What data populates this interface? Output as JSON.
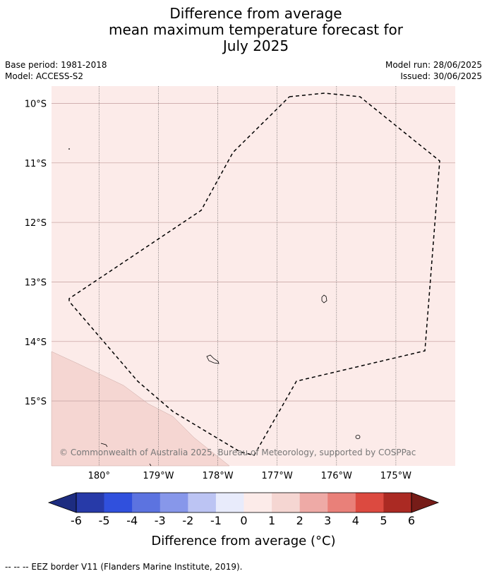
{
  "title_lines": [
    "Difference from average",
    "mean maximum temperature forecast for",
    "July 2025"
  ],
  "meta": {
    "base_period": "Base period: 1981-2018",
    "model": "Model: ACCESS-S2",
    "model_run": "Model run: 28/06/2025",
    "issued": "Issued: 30/06/2025"
  },
  "map": {
    "lat_labels": [
      "10°S",
      "11°S",
      "12°S",
      "13°S",
      "14°S",
      "15°S"
    ],
    "lon_labels": [
      "180°",
      "179°W",
      "178°W",
      "177°W",
      "176°W",
      "175°W"
    ],
    "lat_values": [
      -10,
      -11,
      -12,
      -13,
      -14,
      -15
    ],
    "lon_values": [
      180,
      181,
      182,
      183,
      184,
      185
    ],
    "extent": {
      "lon_min": 179.2,
      "lon_max": 186.0,
      "lat_min": -16.09,
      "lat_max": -9.71
    },
    "background_color": "#fcebe9",
    "warm_region_color": "#f5d6d2",
    "copyright": "© Commonwealth of Australia 2025, Bureau of Meteorology, supported by COSPPac"
  },
  "colorbar": {
    "ticks": [
      "-6",
      "-5",
      "-4",
      "-3",
      "-2",
      "-1",
      "0",
      "1",
      "2",
      "3",
      "4",
      "5",
      "6"
    ],
    "colors": [
      "#273aa8",
      "#3050dd",
      "#5c73e0",
      "#8797ea",
      "#bcc4f3",
      "#e8ebfb",
      "#fcebe9",
      "#f5d6d2",
      "#eeaaa6",
      "#e98079",
      "#dc4a40",
      "#ab2a23"
    ],
    "under_color": "#1d2c80",
    "over_color": "#761c18",
    "label": "Difference from average (°C)"
  },
  "footer": "--  --  -- EEZ border V11 (Flanders Marine Institute, 2019)."
}
